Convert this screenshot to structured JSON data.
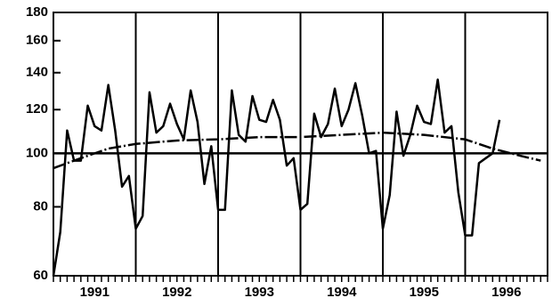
{
  "chart_data": {
    "type": "line",
    "log_y": true,
    "ylim": [
      60,
      180
    ],
    "yticks": [
      60,
      80,
      100,
      120,
      140,
      160,
      180
    ],
    "xlim": [
      0,
      72
    ],
    "xticks": [
      {
        "value": 6,
        "label": "1991"
      },
      {
        "value": 18,
        "label": "1992"
      },
      {
        "value": 30,
        "label": "1993"
      },
      {
        "value": 42,
        "label": "1994"
      },
      {
        "value": 54,
        "label": "1995"
      },
      {
        "value": 66,
        "label": "1996"
      }
    ],
    "xgrid": [
      12,
      24,
      36,
      48,
      60
    ],
    "hline": 100,
    "color": "#000000",
    "series": [
      {
        "x": [
          0,
          1,
          2,
          3,
          4,
          5,
          6,
          7,
          8,
          9,
          10,
          11,
          12,
          13,
          14,
          15,
          16,
          17,
          18,
          19,
          20,
          21,
          22,
          23,
          24,
          25,
          26,
          27,
          28,
          29,
          30,
          31,
          32,
          33,
          34,
          35,
          36,
          37,
          38,
          39,
          40,
          41,
          42,
          43,
          44,
          45,
          46,
          47,
          48,
          49,
          50,
          51,
          52,
          53,
          54,
          55,
          56,
          57,
          58,
          59,
          60,
          61,
          62,
          63,
          64,
          65
        ],
        "values": [
          60,
          72,
          110,
          97,
          97,
          122,
          112,
          110,
          133,
          110,
          87,
          91,
          73,
          77,
          129,
          109,
          112,
          123,
          113,
          106,
          130,
          114,
          88,
          103,
          79,
          79,
          130,
          108,
          105,
          127,
          115,
          114,
          125,
          115,
          95,
          98,
          79,
          81,
          118,
          107,
          113,
          131,
          112,
          120,
          134,
          117,
          100,
          101,
          73,
          84,
          119,
          99,
          108,
          122,
          114,
          113,
          136,
          109,
          112,
          85,
          71,
          71,
          96,
          98,
          100,
          115
        ],
        "dashed": false
      },
      {
        "x": [
          0,
          4,
          8,
          12,
          18,
          24,
          30,
          36,
          42,
          48,
          54,
          60,
          64,
          68,
          71
        ],
        "values": [
          94,
          98,
          102,
          104,
          105.5,
          106,
          107,
          107,
          108,
          109,
          108,
          106,
          102,
          99,
          97
        ],
        "dashed": true
      }
    ]
  }
}
